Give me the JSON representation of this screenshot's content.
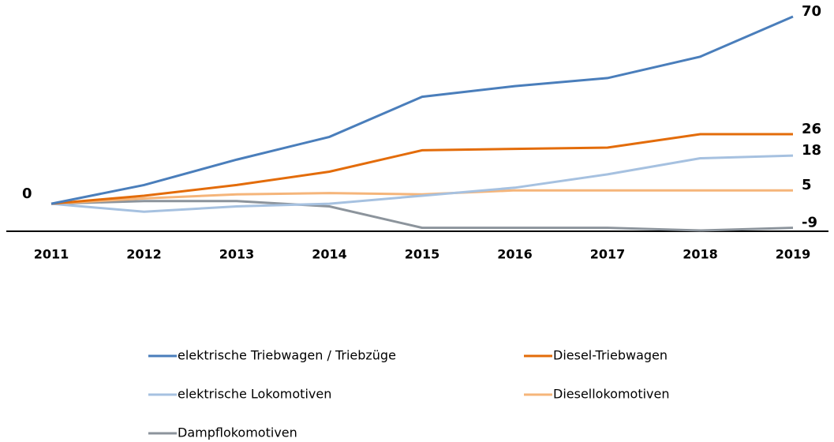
{
  "chart_data": {
    "type": "line",
    "categories": [
      "2011",
      "2012",
      "2013",
      "2014",
      "2015",
      "2016",
      "2017",
      "2018",
      "2019"
    ],
    "series": [
      {
        "name": "elektrische Triebwagen / Triebzüge",
        "color": "#4a7ebb",
        "values": [
          0,
          7,
          16.5,
          25,
          40,
          44,
          47,
          55,
          70
        ]
      },
      {
        "name": "Diesel-Triebwagen",
        "color": "#e36c0a",
        "values": [
          0,
          3,
          7,
          12,
          20,
          20.5,
          21,
          26,
          26
        ]
      },
      {
        "name": "elektrische Lokomotiven",
        "color": "#a6c1e0",
        "values": [
          0,
          -3,
          -1,
          0,
          3,
          6,
          11,
          17,
          18
        ]
      },
      {
        "name": "Diesellokomotiven",
        "color": "#f5b57a",
        "values": [
          0,
          2,
          3.5,
          4,
          3.5,
          5,
          5,
          5,
          5
        ]
      },
      {
        "name": "Dampflokomotiven",
        "color": "#8c949c",
        "values": [
          0,
          1,
          1,
          -1,
          -9,
          -9,
          -9,
          -10,
          -9
        ]
      }
    ],
    "ylim": [
      -10,
      70
    ]
  }
}
